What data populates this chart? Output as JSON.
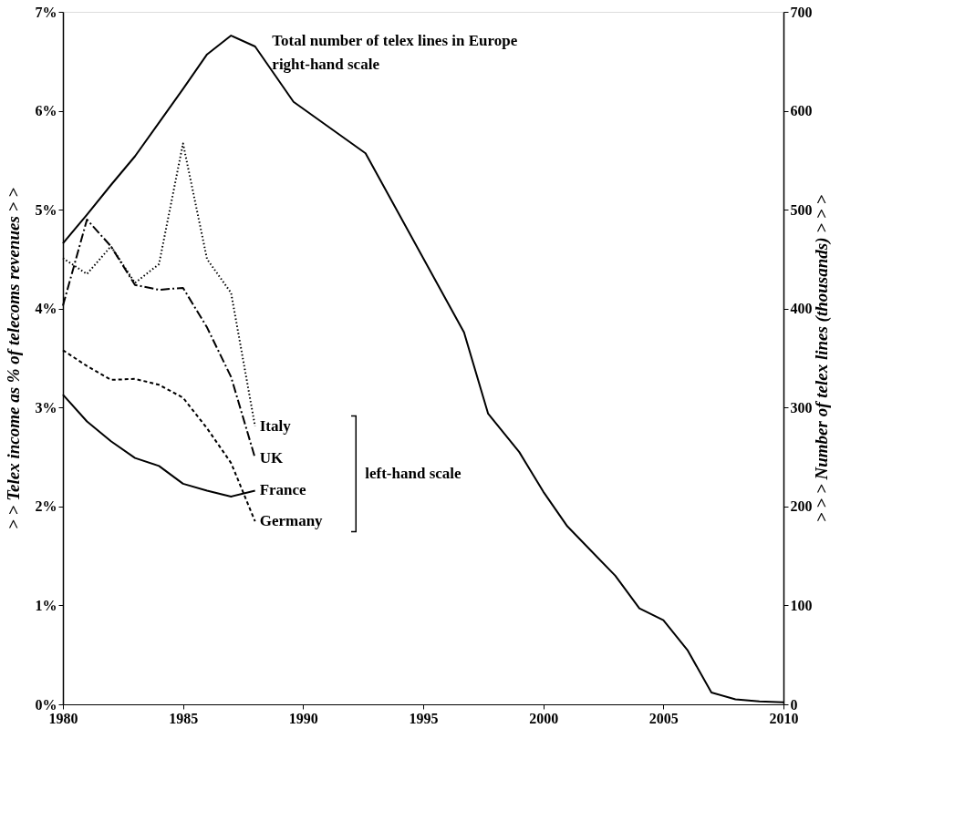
{
  "chart_data": {
    "type": "line",
    "ylabel": "> >  Telex income as % of telecoms revenues  > >",
    "y2label": "> > >  Number of telex lines (thousands)  > > >",
    "xlim": [
      1980,
      2010
    ],
    "xticks": [
      1980,
      1985,
      1990,
      1995,
      2000,
      2005,
      2010
    ],
    "ylim": [
      0,
      7
    ],
    "yticks": [
      {
        "value": 0,
        "label": "0%"
      },
      {
        "value": 1,
        "label": "1%"
      },
      {
        "value": 2,
        "label": "2%"
      },
      {
        "value": 3,
        "label": "3%"
      },
      {
        "value": 4,
        "label": "4%"
      },
      {
        "value": 5,
        "label": "5%"
      },
      {
        "value": 6,
        "label": "6%"
      },
      {
        "value": 7,
        "label": "7%"
      }
    ],
    "y2lim": [
      0,
      700
    ],
    "y2ticks": [
      0,
      100,
      200,
      300,
      400,
      500,
      600,
      700
    ],
    "grid": false,
    "marker": "none",
    "series": [
      {
        "name": "Total number of telex lines in Europe",
        "color": "#000000",
        "axis": "y2",
        "line_style": "solid",
        "x": [
          1980,
          1981,
          1982,
          1983,
          1984,
          1985,
          1986,
          1987,
          1988,
          1989.6,
          1992.6,
          1996.7,
          1997.7,
          1999,
          2000,
          2001,
          2002,
          2003,
          2004,
          2005,
          2006,
          2007,
          2008,
          2009,
          2010
        ],
        "values": [
          466,
          495,
          525,
          554,
          588,
          622,
          657,
          676,
          665,
          609,
          557,
          376,
          294,
          255,
          215,
          180,
          155,
          130,
          97,
          85,
          55,
          12,
          5,
          3,
          2
        ]
      },
      {
        "name": "Italy",
        "color": "#000000",
        "line_style": "dotted",
        "x": [
          1980,
          1981,
          1982,
          1983,
          1984,
          1985,
          1986,
          1987,
          1988
        ],
        "values": [
          4.51,
          4.35,
          4.63,
          4.26,
          4.45,
          5.67,
          4.5,
          4.16,
          2.81
        ]
      },
      {
        "name": "UK",
        "color": "#000000",
        "line_style": "dashed",
        "x": [
          1980,
          1981,
          1982,
          1983,
          1984,
          1985,
          1986,
          1987,
          1988
        ],
        "values": [
          4.03,
          4.9,
          4.63,
          4.24,
          4.19,
          4.21,
          3.81,
          3.31,
          2.49
        ]
      },
      {
        "name": "France",
        "color": "#000000",
        "line_style": "solid",
        "x": [
          1980,
          1981,
          1982,
          1983,
          1984,
          1985,
          1986,
          1987,
          1988
        ],
        "values": [
          3.13,
          2.86,
          2.66,
          2.49,
          2.41,
          2.23,
          2.16,
          2.1,
          2.16
        ]
      },
      {
        "name": "Germany",
        "color": "#000000",
        "line_style": "dashed",
        "x": [
          1980,
          1981,
          1982,
          1983,
          1984,
          1985,
          1986,
          1987,
          1988
        ],
        "values": [
          3.58,
          3.42,
          3.28,
          3.29,
          3.23,
          3.1,
          2.79,
          2.44,
          1.85
        ]
      }
    ],
    "annotations": [
      "right-hand scale",
      "left-hand scale"
    ]
  }
}
